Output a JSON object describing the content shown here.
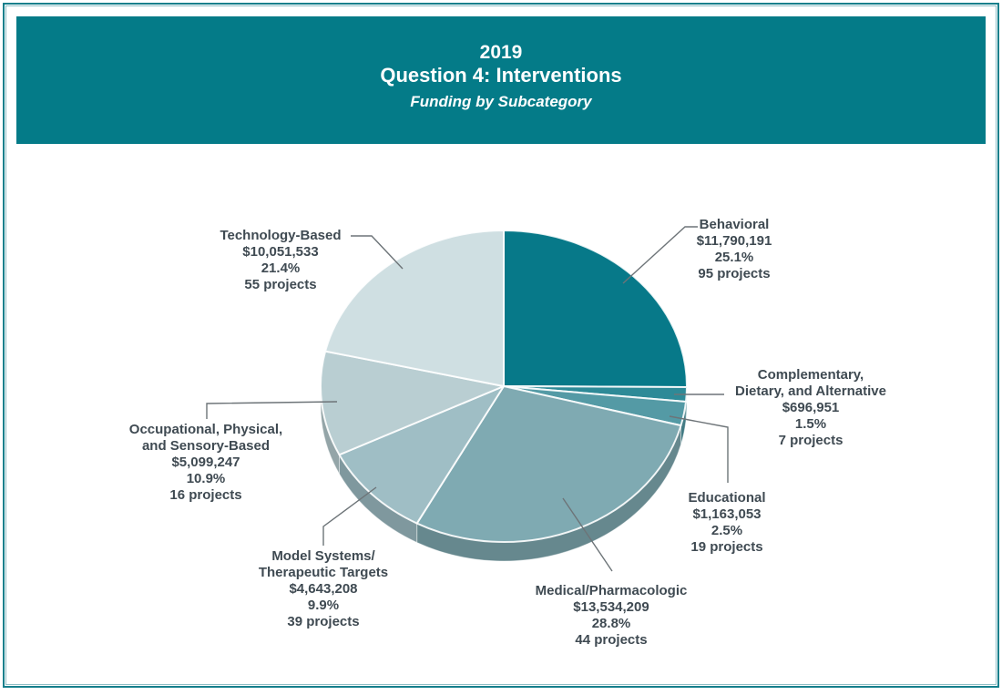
{
  "header": {
    "year": "2019",
    "title": "Question 4: Interventions",
    "subtitle": "Funding by Subcategory",
    "bg_color": "#047b88",
    "text_color": "#ffffff"
  },
  "chart_data": {
    "type": "pie",
    "style": "3d-exploded-look",
    "title": "2019 Question 4: Interventions — Funding by Subcategory",
    "direction": "clockwise",
    "start_angle_deg": 0,
    "legend": "none",
    "labels": "outside-with-leader-lines",
    "label_text_color": "#3f4a52",
    "leader_line_color": "#6d7478",
    "slices": [
      {
        "label": "Behavioral",
        "funding": "$11,790,191",
        "value": 11790191,
        "pct": 25.1,
        "pct_label": "25.1%",
        "projects": 95,
        "projects_label": "95 projects",
        "color": "#077989"
      },
      {
        "label": "Complementary,\nDietary, and Alternative",
        "funding": "$696,951",
        "value": 696951,
        "pct": 1.5,
        "pct_label": "1.5%",
        "projects": 7,
        "projects_label": "7 projects",
        "color": "#2e8a97"
      },
      {
        "label": "Educational",
        "funding": "$1,163,053",
        "value": 1163053,
        "pct": 2.5,
        "pct_label": "2.5%",
        "projects": 19,
        "projects_label": "19 projects",
        "color": "#549aa5"
      },
      {
        "label": "Medical/Pharmacologic",
        "funding": "$13,534,209",
        "value": 13534209,
        "pct": 28.8,
        "pct_label": "28.8%",
        "projects": 44,
        "projects_label": "44 projects",
        "color": "#7faab2"
      },
      {
        "label": "Model Systems/\nTherapeutic Targets",
        "funding": "$4,643,208",
        "value": 4643208,
        "pct": 9.9,
        "pct_label": "9.9%",
        "projects": 39,
        "projects_label": "39 projects",
        "color": "#9fbec5"
      },
      {
        "label": "Occupational, Physical,\nand Sensory-Based",
        "funding": "$5,099,247",
        "value": 5099247,
        "pct": 10.9,
        "pct_label": "10.9%",
        "projects": 16,
        "projects_label": "16 projects",
        "color": "#b9ced2"
      },
      {
        "label": "Technology-Based",
        "funding": "$10,051,533",
        "value": 10051533,
        "pct": 21.4,
        "pct_label": "21.4%",
        "projects": 55,
        "projects_label": "55 projects",
        "color": "#cfdfe2"
      }
    ]
  }
}
